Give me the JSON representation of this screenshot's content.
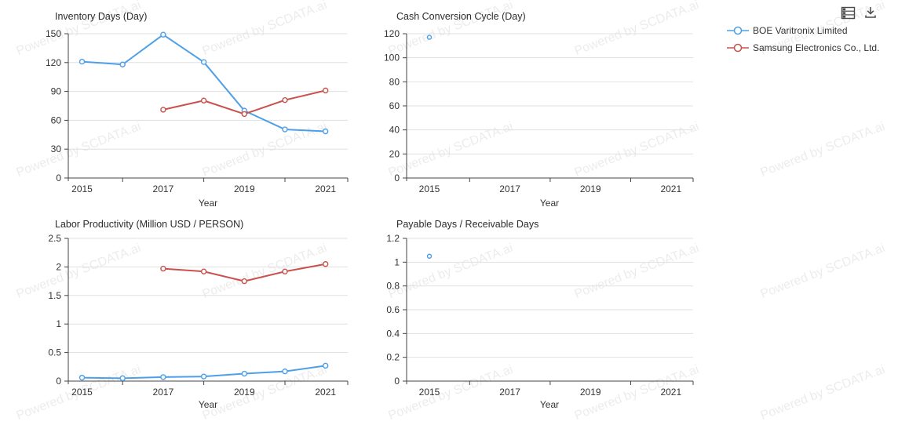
{
  "watermark": {
    "text": "Powered by SCDATA.ai"
  },
  "toolbar": {
    "icons": [
      {
        "name": "data-view-table-icon"
      },
      {
        "name": "download-icon"
      }
    ]
  },
  "legend": {
    "items": [
      {
        "label": "BOE Varitronix Limited",
        "color": "#4d9fe9"
      },
      {
        "label": "Samsung Electronics Co., Ltd.",
        "color": "#c9524e"
      }
    ]
  },
  "colors": {
    "blue_series": "#4d9fe9",
    "red_series": "#c9524e",
    "axis": "#444444",
    "gridline": "#e0e0e0",
    "text": "#333333"
  },
  "chart_data": [
    {
      "type": "line",
      "title": "Inventory Days (Day)",
      "xlabel": "Year",
      "x": [
        2015,
        2016,
        2017,
        2018,
        2019,
        2020,
        2021
      ],
      "x_label_years": [
        2015,
        2017,
        2019,
        2021
      ],
      "x_minor_tick_years": [
        2016,
        2018,
        2020
      ],
      "ylim": [
        0,
        150
      ],
      "ytick_labels": [
        "0",
        "30",
        "60",
        "90",
        "120",
        "150"
      ],
      "grid": true,
      "series": [
        {
          "name": "BOE Varitronix Limited",
          "color": "#4d9fe9",
          "values": [
            121,
            118,
            149,
            120.5,
            70,
            50.5,
            48.5
          ]
        },
        {
          "name": "Samsung Electronics Co., Ltd.",
          "color": "#c9524e",
          "values": [
            null,
            null,
            71,
            80.5,
            66.5,
            81,
            91
          ]
        }
      ]
    },
    {
      "type": "line",
      "title": "Cash Conversion Cycle (Day)",
      "xlabel": "Year",
      "x": [
        2015,
        2016,
        2017,
        2018,
        2019,
        2020,
        2021
      ],
      "x_label_years": [
        2015,
        2017,
        2019,
        2021
      ],
      "x_minor_tick_years": [
        2016,
        2018,
        2020
      ],
      "ylim": [
        0,
        120
      ],
      "ytick_labels": [
        "0",
        "20",
        "40",
        "60",
        "80",
        "100",
        "120"
      ],
      "grid": true,
      "series": [
        {
          "name": "BOE Varitronix Limited",
          "color": "#4d9fe9",
          "values": [
            117,
            null,
            null,
            null,
            null,
            null,
            null
          ]
        },
        {
          "name": "Samsung Electronics Co., Ltd.",
          "color": "#c9524e",
          "values": [
            null,
            null,
            null,
            null,
            null,
            null,
            null
          ]
        }
      ]
    },
    {
      "type": "line",
      "title": "Labor Productivity (Million USD / PERSON)",
      "xlabel": "Year",
      "x": [
        2015,
        2016,
        2017,
        2018,
        2019,
        2020,
        2021
      ],
      "x_label_years": [
        2015,
        2017,
        2019,
        2021
      ],
      "x_minor_tick_years": [
        2016,
        2018,
        2020
      ],
      "ylim": [
        0,
        2.5
      ],
      "ytick_labels": [
        "0",
        "0.5",
        "1",
        "1.5",
        "2",
        "2.5"
      ],
      "grid": true,
      "series": [
        {
          "name": "BOE Varitronix Limited",
          "color": "#4d9fe9",
          "values": [
            0.06,
            0.05,
            0.07,
            0.08,
            0.13,
            0.17,
            0.27
          ]
        },
        {
          "name": "Samsung Electronics Co., Ltd.",
          "color": "#c9524e",
          "values": [
            null,
            null,
            1.97,
            1.92,
            1.75,
            1.92,
            2.05
          ]
        }
      ]
    },
    {
      "type": "line",
      "title": "Payable Days / Receivable Days",
      "xlabel": "Year",
      "x": [
        2015,
        2016,
        2017,
        2018,
        2019,
        2020,
        2021
      ],
      "x_label_years": [
        2015,
        2017,
        2019,
        2021
      ],
      "x_minor_tick_years": [
        2016,
        2018,
        2020
      ],
      "ylim": [
        0,
        1.2
      ],
      "ytick_labels": [
        "0",
        "0.2",
        "0.4",
        "0.6",
        "0.8",
        "1",
        "1.2"
      ],
      "grid": true,
      "series": [
        {
          "name": "BOE Varitronix Limited",
          "color": "#4d9fe9",
          "values": [
            1.05,
            null,
            null,
            null,
            null,
            null,
            null
          ]
        },
        {
          "name": "Samsung Electronics Co., Ltd.",
          "color": "#c9524e",
          "values": [
            null,
            null,
            null,
            null,
            null,
            null,
            null
          ]
        }
      ]
    }
  ]
}
